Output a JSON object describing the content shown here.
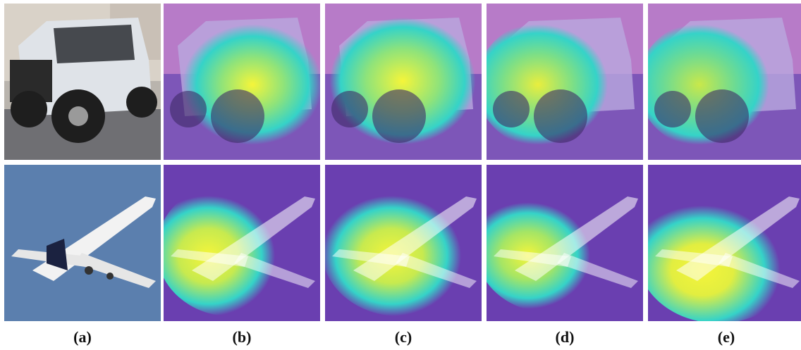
{
  "figure": {
    "rows": [
      {
        "subject": "vehicle",
        "description": "white off-road SUV parked in lot"
      },
      {
        "subject": "airplane",
        "description": "white passenger jet in blue sky"
      }
    ],
    "columns": [
      {
        "caption": "(a)",
        "type": "original-image"
      },
      {
        "caption": "(b)",
        "type": "attention-heatmap-overlay"
      },
      {
        "caption": "(c)",
        "type": "attention-heatmap-overlay"
      },
      {
        "caption": "(d)",
        "type": "attention-heatmap-overlay"
      },
      {
        "caption": "(e)",
        "type": "attention-heatmap-overlay"
      }
    ],
    "colors": {
      "heatmap_low": "#6a3fb0",
      "heatmap_mid": "#35d3c8",
      "heatmap_high": "#f5f53a",
      "sky": "#5b7fae",
      "car_body": "#d8dde3"
    }
  }
}
